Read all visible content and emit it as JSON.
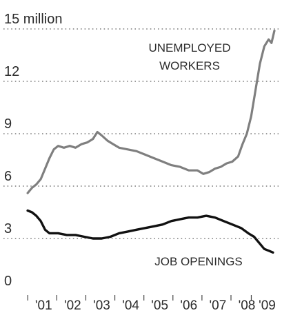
{
  "chart_data": {
    "type": "line",
    "title": "",
    "xlabel": "",
    "ylabel": "",
    "ylim": [
      0,
      15
    ],
    "xlim": [
      2000.9,
      2009.45
    ],
    "grid": true,
    "y_ticks": [
      {
        "value": 15,
        "label": "15 million"
      },
      {
        "value": 12,
        "label": "12"
      },
      {
        "value": 9,
        "label": "9"
      },
      {
        "value": 6,
        "label": "6"
      },
      {
        "value": 3,
        "label": "3"
      },
      {
        "value": 0,
        "label": "0"
      }
    ],
    "x_ticks": [
      {
        "value": 2001.5,
        "label": "'01"
      },
      {
        "value": 2002.5,
        "label": "'02"
      },
      {
        "value": 2003.5,
        "label": "'03"
      },
      {
        "value": 2004.5,
        "label": "'04"
      },
      {
        "value": 2005.5,
        "label": "'05"
      },
      {
        "value": 2006.5,
        "label": "'06"
      },
      {
        "value": 2007.5,
        "label": "'07"
      },
      {
        "value": 2008.5,
        "label": "'08"
      },
      {
        "value": 2009.2,
        "label": "'09"
      }
    ],
    "series": [
      {
        "name": "UNEMPLOYED WORKERS",
        "label_lines": [
          "UNEMPLOYED",
          "WORKERS"
        ],
        "color": "#7f7f7f",
        "points": [
          [
            2000.95,
            5.6
          ],
          [
            2001.1,
            5.9
          ],
          [
            2001.25,
            6.1
          ],
          [
            2001.4,
            6.4
          ],
          [
            2001.55,
            7.0
          ],
          [
            2001.7,
            7.6
          ],
          [
            2001.85,
            8.1
          ],
          [
            2002.0,
            8.3
          ],
          [
            2002.2,
            8.2
          ],
          [
            2002.4,
            8.3
          ],
          [
            2002.6,
            8.2
          ],
          [
            2002.8,
            8.4
          ],
          [
            2003.0,
            8.5
          ],
          [
            2003.2,
            8.7
          ],
          [
            2003.35,
            9.1
          ],
          [
            2003.5,
            8.9
          ],
          [
            2003.7,
            8.6
          ],
          [
            2003.9,
            8.4
          ],
          [
            2004.1,
            8.2
          ],
          [
            2004.4,
            8.1
          ],
          [
            2004.7,
            8.0
          ],
          [
            2005.0,
            7.8
          ],
          [
            2005.3,
            7.6
          ],
          [
            2005.6,
            7.4
          ],
          [
            2005.9,
            7.2
          ],
          [
            2006.2,
            7.1
          ],
          [
            2006.5,
            6.9
          ],
          [
            2006.8,
            6.9
          ],
          [
            2007.0,
            6.7
          ],
          [
            2007.2,
            6.8
          ],
          [
            2007.4,
            7.0
          ],
          [
            2007.6,
            7.1
          ],
          [
            2007.8,
            7.3
          ],
          [
            2008.0,
            7.4
          ],
          [
            2008.2,
            7.7
          ],
          [
            2008.35,
            8.4
          ],
          [
            2008.5,
            9.0
          ],
          [
            2008.65,
            10.0
          ],
          [
            2008.8,
            11.5
          ],
          [
            2008.95,
            13.0
          ],
          [
            2009.1,
            14.0
          ],
          [
            2009.25,
            14.4
          ],
          [
            2009.35,
            14.2
          ],
          [
            2009.45,
            14.9
          ]
        ]
      },
      {
        "name": "JOB OPENINGS",
        "label_lines": [
          "JOB OPENINGS"
        ],
        "color": "#111111",
        "points": [
          [
            2000.95,
            4.6
          ],
          [
            2001.1,
            4.5
          ],
          [
            2001.25,
            4.3
          ],
          [
            2001.4,
            4.0
          ],
          [
            2001.55,
            3.5
          ],
          [
            2001.7,
            3.3
          ],
          [
            2002.0,
            3.3
          ],
          [
            2002.3,
            3.2
          ],
          [
            2002.6,
            3.2
          ],
          [
            2002.9,
            3.1
          ],
          [
            2003.2,
            3.0
          ],
          [
            2003.5,
            3.0
          ],
          [
            2003.8,
            3.1
          ],
          [
            2004.1,
            3.3
          ],
          [
            2004.4,
            3.4
          ],
          [
            2004.7,
            3.5
          ],
          [
            2005.0,
            3.6
          ],
          [
            2005.3,
            3.7
          ],
          [
            2005.6,
            3.8
          ],
          [
            2005.9,
            4.0
          ],
          [
            2006.2,
            4.1
          ],
          [
            2006.5,
            4.2
          ],
          [
            2006.8,
            4.2
          ],
          [
            2007.1,
            4.3
          ],
          [
            2007.4,
            4.2
          ],
          [
            2007.7,
            4.0
          ],
          [
            2008.0,
            3.8
          ],
          [
            2008.3,
            3.6
          ],
          [
            2008.55,
            3.3
          ],
          [
            2008.75,
            3.1
          ],
          [
            2008.95,
            2.7
          ],
          [
            2009.1,
            2.4
          ],
          [
            2009.25,
            2.3
          ],
          [
            2009.4,
            2.2
          ]
        ]
      }
    ]
  }
}
